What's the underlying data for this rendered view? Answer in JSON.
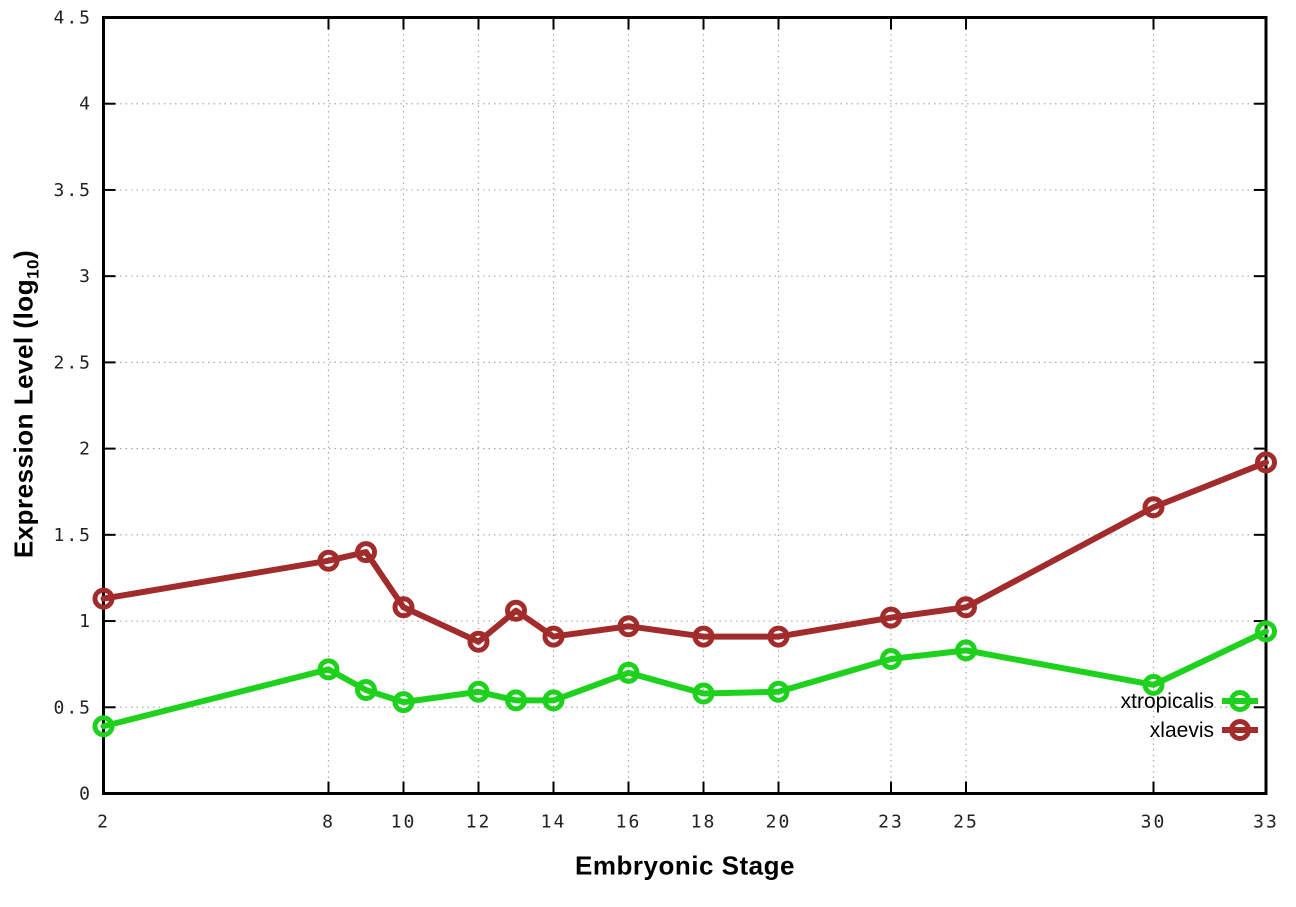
{
  "chart_data": {
    "type": "line",
    "title": "",
    "xlabel": "Embryonic Stage",
    "ylabel": "Expression Level (log10)",
    "ylabel_subscript": "10",
    "xlim": [
      2,
      33
    ],
    "ylim": [
      0,
      4.5
    ],
    "grid": true,
    "legend_position": "inside-right",
    "x_ticks": [
      2,
      8,
      10,
      12,
      14,
      16,
      18,
      20,
      23,
      25,
      30,
      33
    ],
    "x_tick_labels": [
      "2",
      "8",
      "10",
      "12",
      "14",
      "16",
      "18",
      "20",
      "23",
      "25",
      "30",
      "33"
    ],
    "y_ticks": [
      0,
      0.5,
      1,
      1.5,
      2,
      2.5,
      3,
      3.5,
      4,
      4.5
    ],
    "y_tick_labels": [
      "0",
      "0.5",
      "1",
      "1.5",
      "2",
      "2.5",
      "3",
      "3.5",
      "4",
      "4.5"
    ],
    "x": [
      2,
      8,
      9,
      10,
      12,
      13,
      14,
      16,
      18,
      20,
      23,
      25,
      30,
      33
    ],
    "series": [
      {
        "name": "xtropicalis",
        "color": "#1dd11d",
        "marker": "open-circle",
        "values": [
          0.39,
          0.72,
          0.6,
          0.53,
          0.59,
          0.54,
          0.54,
          0.7,
          0.58,
          0.59,
          0.78,
          0.83,
          0.63,
          0.94
        ]
      },
      {
        "name": "xlaevis",
        "color": "#a22c2c",
        "marker": "open-circle",
        "values": [
          1.13,
          1.35,
          1.4,
          1.08,
          0.88,
          1.06,
          0.91,
          0.97,
          0.91,
          0.91,
          1.02,
          1.08,
          1.66,
          1.92
        ]
      }
    ],
    "colors": {
      "background": "#ffffff",
      "border": "#000000",
      "grid": "#aaaaaa",
      "tick_label": "#222222"
    }
  }
}
